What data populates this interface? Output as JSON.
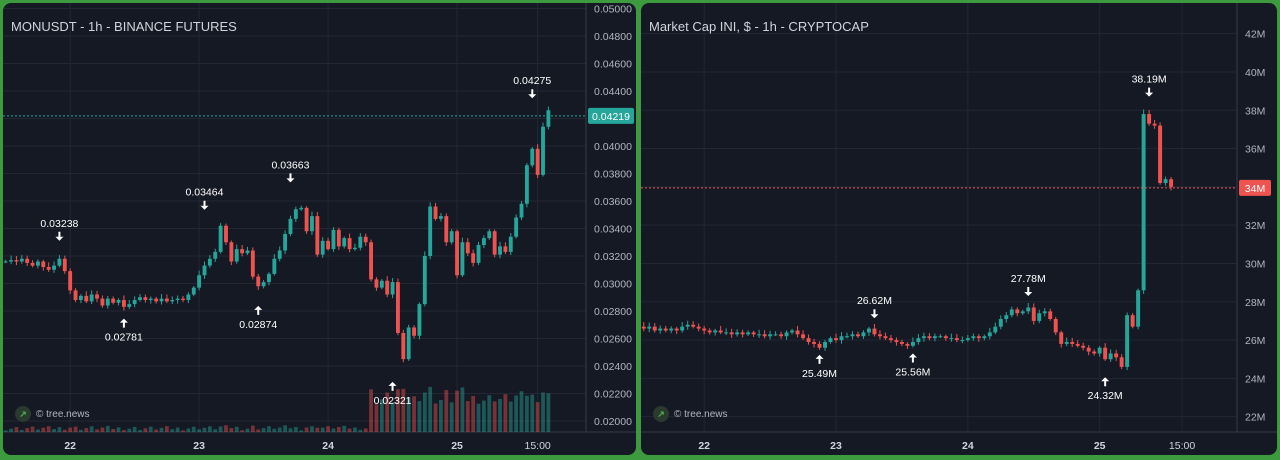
{
  "watermark": "© tree.news",
  "chart_data": [
    {
      "type": "candlestick",
      "title": "MONUSDT - 1h - BINANCE FUTURES",
      "y_ticks": [
        "0.05000",
        "0.04800",
        "0.04600",
        "0.04400",
        "0.04200",
        "0.04000",
        "0.03800",
        "0.03600",
        "0.03400",
        "0.03200",
        "0.03000",
        "0.02800",
        "0.02600",
        "0.02400",
        "0.02200",
        "0.02000"
      ],
      "ylim": [
        0.0192,
        0.0504
      ],
      "x_ticks": [
        {
          "label": "22",
          "bold": true,
          "x": 12
        },
        {
          "label": "23",
          "bold": true,
          "x": 36
        },
        {
          "label": "24",
          "bold": true,
          "x": 60
        },
        {
          "label": "25",
          "bold": true,
          "x": 84
        },
        {
          "label": "15:00",
          "bold": false,
          "x": 99
        }
      ],
      "current_price": {
        "label": "0.04219",
        "value": 0.04219,
        "color": "#26a69a"
      },
      "annotations": [
        {
          "label": "0.03238",
          "x": 10,
          "value": 0.03238,
          "side": "high"
        },
        {
          "label": "0.02781",
          "x": 22,
          "value": 0.02781,
          "side": "low"
        },
        {
          "label": "0.03464",
          "x": 37,
          "value": 0.03464,
          "side": "high"
        },
        {
          "label": "0.02874",
          "x": 47,
          "value": 0.02874,
          "side": "low"
        },
        {
          "label": "0.03663",
          "x": 53,
          "value": 0.03663,
          "side": "high"
        },
        {
          "label": "0.02321",
          "x": 72,
          "value": 0.02321,
          "side": "low"
        },
        {
          "label": "0.04275",
          "x": 98,
          "value": 0.04275,
          "side": "high"
        }
      ],
      "x_range": [
        -0.5,
        108
      ],
      "volume_max": 0.018,
      "series": [
        {
          "x": 0,
          "close": 0.0316
        },
        {
          "x": 1,
          "close": 0.0317
        },
        {
          "x": 2,
          "close": 0.0316
        },
        {
          "x": 3,
          "close": 0.0318
        },
        {
          "x": 4,
          "close": 0.0315
        },
        {
          "x": 5,
          "close": 0.0313
        },
        {
          "x": 6,
          "close": 0.0316
        },
        {
          "x": 7,
          "close": 0.0312
        },
        {
          "x": 8,
          "close": 0.031
        },
        {
          "x": 9,
          "close": 0.0313
        },
        {
          "x": 10,
          "close": 0.0318
        },
        {
          "x": 11,
          "close": 0.0309
        },
        {
          "x": 12,
          "close": 0.0295
        },
        {
          "x": 13,
          "close": 0.0288
        },
        {
          "x": 14,
          "close": 0.0291
        },
        {
          "x": 15,
          "close": 0.0287
        },
        {
          "x": 16,
          "close": 0.0292
        },
        {
          "x": 17,
          "close": 0.0289
        },
        {
          "x": 18,
          "close": 0.0284
        },
        {
          "x": 19,
          "close": 0.0289
        },
        {
          "x": 20,
          "close": 0.0286
        },
        {
          "x": 21,
          "close": 0.0288
        },
        {
          "x": 22,
          "close": 0.0283
        },
        {
          "x": 23,
          "close": 0.0285
        },
        {
          "x": 24,
          "close": 0.0288
        },
        {
          "x": 25,
          "close": 0.029
        },
        {
          "x": 26,
          "close": 0.0288
        },
        {
          "x": 27,
          "close": 0.0289
        },
        {
          "x": 28,
          "close": 0.0287
        },
        {
          "x": 29,
          "close": 0.0289
        },
        {
          "x": 30,
          "close": 0.0287
        },
        {
          "x": 31,
          "close": 0.0288
        },
        {
          "x": 32,
          "close": 0.0289
        },
        {
          "x": 33,
          "close": 0.0288
        },
        {
          "x": 34,
          "close": 0.0292
        },
        {
          "x": 35,
          "close": 0.0297
        },
        {
          "x": 36,
          "close": 0.0306
        },
        {
          "x": 37,
          "close": 0.0313
        },
        {
          "x": 38,
          "close": 0.0318
        },
        {
          "x": 39,
          "close": 0.0323
        },
        {
          "x": 40,
          "close": 0.0342
        },
        {
          "x": 41,
          "close": 0.033
        },
        {
          "x": 42,
          "close": 0.0316
        },
        {
          "x": 43,
          "close": 0.0325
        },
        {
          "x": 44,
          "close": 0.0322
        },
        {
          "x": 45,
          "close": 0.0324
        },
        {
          "x": 46,
          "close": 0.0305
        },
        {
          "x": 47,
          "close": 0.0298
        },
        {
          "x": 48,
          "close": 0.0301
        },
        {
          "x": 49,
          "close": 0.0307
        },
        {
          "x": 50,
          "close": 0.0318
        },
        {
          "x": 51,
          "close": 0.0324
        },
        {
          "x": 52,
          "close": 0.0336
        },
        {
          "x": 53,
          "close": 0.0347
        },
        {
          "x": 54,
          "close": 0.0354
        },
        {
          "x": 55,
          "close": 0.0355
        },
        {
          "x": 56,
          "close": 0.0338
        },
        {
          "x": 57,
          "close": 0.0349
        },
        {
          "x": 58,
          "close": 0.0321
        },
        {
          "x": 59,
          "close": 0.0331
        },
        {
          "x": 60,
          "close": 0.0325
        },
        {
          "x": 61,
          "close": 0.0339
        },
        {
          "x": 62,
          "close": 0.0327
        },
        {
          "x": 63,
          "close": 0.0333
        },
        {
          "x": 64,
          "close": 0.0325
        },
        {
          "x": 65,
          "close": 0.0326
        },
        {
          "x": 66,
          "close": 0.0334
        },
        {
          "x": 67,
          "close": 0.033
        },
        {
          "x": 68,
          "close": 0.0303
        },
        {
          "x": 69,
          "close": 0.0297
        },
        {
          "x": 70,
          "close": 0.0302
        },
        {
          "x": 71,
          "close": 0.0292
        },
        {
          "x": 72,
          "close": 0.0301
        },
        {
          "x": 73,
          "close": 0.0264
        },
        {
          "x": 74,
          "close": 0.0245
        },
        {
          "x": 75,
          "close": 0.0268
        },
        {
          "x": 76,
          "close": 0.0262
        },
        {
          "x": 77,
          "close": 0.0285
        },
        {
          "x": 78,
          "close": 0.032
        },
        {
          "x": 79,
          "close": 0.0356
        },
        {
          "x": 80,
          "close": 0.0347
        },
        {
          "x": 81,
          "close": 0.0349
        },
        {
          "x": 82,
          "close": 0.033
        },
        {
          "x": 83,
          "close": 0.0338
        },
        {
          "x": 84,
          "close": 0.0306
        },
        {
          "x": 85,
          "close": 0.033
        },
        {
          "x": 86,
          "close": 0.0322
        },
        {
          "x": 87,
          "close": 0.0315
        },
        {
          "x": 88,
          "close": 0.0328
        },
        {
          "x": 89,
          "close": 0.0333
        },
        {
          "x": 90,
          "close": 0.0338
        },
        {
          "x": 91,
          "close": 0.0321
        },
        {
          "x": 92,
          "close": 0.0327
        },
        {
          "x": 93,
          "close": 0.0323
        },
        {
          "x": 94,
          "close": 0.0334
        },
        {
          "x": 95,
          "close": 0.0348
        },
        {
          "x": 96,
          "close": 0.0358
        },
        {
          "x": 97,
          "close": 0.0386
        },
        {
          "x": 98,
          "close": 0.0398
        },
        {
          "x": 99,
          "close": 0.0379
        },
        {
          "x": 100,
          "close": 0.0414
        },
        {
          "x": 101,
          "close": 0.0426
        }
      ]
    },
    {
      "type": "candlestick",
      "title": "Market Cap INI, $ - 1h - CRYPTOCAP",
      "y_ticks": [
        "42M",
        "40M",
        "38M",
        "36M",
        "34M",
        "32M",
        "30M",
        "28M",
        "26M",
        "24M",
        "22M"
      ],
      "ylim": [
        21.2,
        43.6
      ],
      "x_ticks": [
        {
          "label": "22",
          "bold": true,
          "x": 12
        },
        {
          "label": "23",
          "bold": true,
          "x": 36
        },
        {
          "label": "24",
          "bold": true,
          "x": 60
        },
        {
          "label": "25",
          "bold": true,
          "x": 84
        },
        {
          "label": "15:00",
          "bold": false,
          "x": 99
        }
      ],
      "current_price": {
        "label": "34M",
        "value": 33.95,
        "color": "#ef5350"
      },
      "annotations": [
        {
          "label": "26.62M",
          "x": 43,
          "value": 26.62,
          "side": "high"
        },
        {
          "label": "25.49M",
          "x": 33,
          "value": 25.49,
          "side": "low"
        },
        {
          "label": "25.56M",
          "x": 50,
          "value": 25.56,
          "side": "low"
        },
        {
          "label": "27.78M",
          "x": 71,
          "value": 27.78,
          "side": "high"
        },
        {
          "label": "24.32M",
          "x": 85,
          "value": 24.32,
          "side": "low"
        },
        {
          "label": "38.19M",
          "x": 93,
          "value": 38.19,
          "side": "high"
        }
      ],
      "x_range": [
        0.5,
        109
      ],
      "series": [
        {
          "x": 0,
          "close": 26.7
        },
        {
          "x": 1,
          "close": 26.6
        },
        {
          "x": 2,
          "close": 26.7
        },
        {
          "x": 3,
          "close": 26.5
        },
        {
          "x": 4,
          "close": 26.6
        },
        {
          "x": 5,
          "close": 26.5
        },
        {
          "x": 6,
          "close": 26.6
        },
        {
          "x": 7,
          "close": 26.5
        },
        {
          "x": 8,
          "close": 26.7
        },
        {
          "x": 9,
          "close": 26.8
        },
        {
          "x": 10,
          "close": 26.7
        },
        {
          "x": 11,
          "close": 26.6
        },
        {
          "x": 12,
          "close": 26.5
        },
        {
          "x": 13,
          "close": 26.4
        },
        {
          "x": 14,
          "close": 26.5
        },
        {
          "x": 15,
          "close": 26.4
        },
        {
          "x": 16,
          "close": 26.4
        },
        {
          "x": 17,
          "close": 26.3
        },
        {
          "x": 18,
          "close": 26.4
        },
        {
          "x": 19,
          "close": 26.3
        },
        {
          "x": 20,
          "close": 26.4
        },
        {
          "x": 21,
          "close": 26.3
        },
        {
          "x": 22,
          "close": 26.3
        },
        {
          "x": 23,
          "close": 26.2
        },
        {
          "x": 24,
          "close": 26.3
        },
        {
          "x": 25,
          "close": 26.3
        },
        {
          "x": 26,
          "close": 26.2
        },
        {
          "x": 27,
          "close": 26.4
        },
        {
          "x": 28,
          "close": 26.5
        },
        {
          "x": 29,
          "close": 26.3
        },
        {
          "x": 30,
          "close": 26.1
        },
        {
          "x": 31,
          "close": 25.9
        },
        {
          "x": 32,
          "close": 25.8
        },
        {
          "x": 33,
          "close": 25.6
        },
        {
          "x": 34,
          "close": 25.9
        },
        {
          "x": 35,
          "close": 26.1
        },
        {
          "x": 36,
          "close": 26.0
        },
        {
          "x": 37,
          "close": 26.2
        },
        {
          "x": 38,
          "close": 26.2
        },
        {
          "x": 39,
          "close": 26.3
        },
        {
          "x": 40,
          "close": 26.2
        },
        {
          "x": 41,
          "close": 26.4
        },
        {
          "x": 42,
          "close": 26.6
        },
        {
          "x": 43,
          "close": 26.3
        },
        {
          "x": 44,
          "close": 26.2
        },
        {
          "x": 45,
          "close": 26.1
        },
        {
          "x": 46,
          "close": 26.0
        },
        {
          "x": 47,
          "close": 25.9
        },
        {
          "x": 48,
          "close": 25.8
        },
        {
          "x": 49,
          "close": 25.7
        },
        {
          "x": 50,
          "close": 25.9
        },
        {
          "x": 51,
          "close": 26.1
        },
        {
          "x": 52,
          "close": 26.2
        },
        {
          "x": 53,
          "close": 26.1
        },
        {
          "x": 54,
          "close": 26.2
        },
        {
          "x": 55,
          "close": 26.2
        },
        {
          "x": 56,
          "close": 26.1
        },
        {
          "x": 57,
          "close": 26.1
        },
        {
          "x": 58,
          "close": 26.0
        },
        {
          "x": 59,
          "close": 26.0
        },
        {
          "x": 60,
          "close": 26.1
        },
        {
          "x": 61,
          "close": 26.2
        },
        {
          "x": 62,
          "close": 26.1
        },
        {
          "x": 63,
          "close": 26.2
        },
        {
          "x": 64,
          "close": 26.4
        },
        {
          "x": 65,
          "close": 26.7
        },
        {
          "x": 66,
          "close": 27.1
        },
        {
          "x": 67,
          "close": 27.3
        },
        {
          "x": 68,
          "close": 27.6
        },
        {
          "x": 69,
          "close": 27.4
        },
        {
          "x": 70,
          "close": 27.5
        },
        {
          "x": 71,
          "close": 27.7
        },
        {
          "x": 72,
          "close": 27.0
        },
        {
          "x": 73,
          "close": 27.4
        },
        {
          "x": 74,
          "close": 27.5
        },
        {
          "x": 75,
          "close": 27.1
        },
        {
          "x": 76,
          "close": 26.4
        },
        {
          "x": 77,
          "close": 25.8
        },
        {
          "x": 78,
          "close": 25.9
        },
        {
          "x": 79,
          "close": 25.8
        },
        {
          "x": 80,
          "close": 25.7
        },
        {
          "x": 81,
          "close": 25.6
        },
        {
          "x": 82,
          "close": 25.4
        },
        {
          "x": 83,
          "close": 25.3
        },
        {
          "x": 84,
          "close": 25.6
        },
        {
          "x": 85,
          "close": 25.0
        },
        {
          "x": 86,
          "close": 25.3
        },
        {
          "x": 87,
          "close": 25.1
        },
        {
          "x": 88,
          "close": 24.6
        },
        {
          "x": 89,
          "close": 27.3
        },
        {
          "x": 90,
          "close": 26.7
        },
        {
          "x": 91,
          "close": 28.6
        },
        {
          "x": 92,
          "close": 37.8
        },
        {
          "x": 93,
          "close": 37.3
        },
        {
          "x": 94,
          "close": 37.2
        },
        {
          "x": 95,
          "close": 34.2
        },
        {
          "x": 96,
          "close": 34.4
        },
        {
          "x": 97,
          "close": 34.0
        }
      ]
    }
  ]
}
